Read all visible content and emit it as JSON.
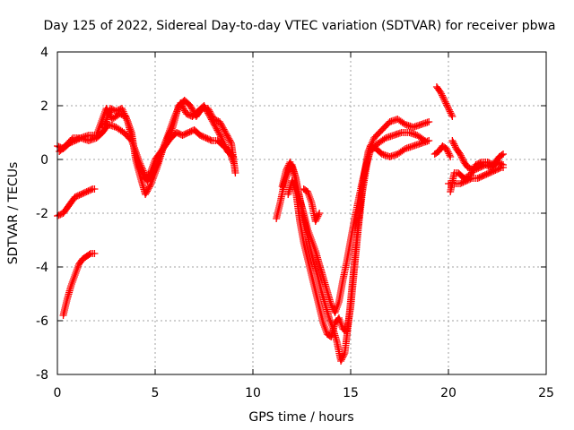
{
  "chart_data": {
    "type": "scatter",
    "title": "Day 125 of 2022, Sidereal Day-to-day VTEC variation (SDTVAR) for receiver pbwa",
    "xlabel": "GPS time / hours",
    "ylabel": "SDTVAR / TECUs",
    "xlim": [
      0,
      25
    ],
    "ylim": [
      -8,
      4
    ],
    "xticks": [
      0,
      5,
      10,
      15,
      20,
      25
    ],
    "yticks": [
      -8,
      -6,
      -4,
      -2,
      0,
      2,
      4
    ],
    "grid": true,
    "marker": "+",
    "color": "#ff0000",
    "series": [
      {
        "points": [
          [
            0.0,
            0.5
          ],
          [
            0.3,
            0.4
          ],
          [
            0.6,
            0.6
          ],
          [
            0.9,
            0.7
          ],
          [
            1.2,
            0.8
          ],
          [
            1.6,
            0.7
          ],
          [
            2.0,
            0.8
          ],
          [
            2.3,
            1.0
          ],
          [
            2.6,
            1.3
          ],
          [
            3.0,
            1.2
          ],
          [
            3.4,
            1.0
          ],
          [
            3.8,
            0.7
          ],
          [
            4.0,
            0.3
          ],
          [
            4.2,
            -0.3
          ],
          [
            4.4,
            -0.6
          ],
          [
            4.6,
            -0.8
          ],
          [
            4.8,
            -0.4
          ],
          [
            5.0,
            0.0
          ],
          [
            5.2,
            0.2
          ],
          [
            5.5,
            0.5
          ],
          [
            5.8,
            0.8
          ],
          [
            6.1,
            1.0
          ],
          [
            6.4,
            0.9
          ],
          [
            6.7,
            1.0
          ],
          [
            7.0,
            1.1
          ],
          [
            7.3,
            0.9
          ],
          [
            7.6,
            0.8
          ],
          [
            7.9,
            0.7
          ],
          [
            8.2,
            0.7
          ],
          [
            8.5,
            0.5
          ],
          [
            8.8,
            0.3
          ],
          [
            9.0,
            -0.1
          ]
        ]
      },
      {
        "points": [
          [
            0.1,
            0.3
          ],
          [
            0.4,
            0.5
          ],
          [
            0.8,
            0.8
          ],
          [
            1.2,
            0.8
          ],
          [
            1.6,
            0.9
          ],
          [
            2.0,
            0.9
          ],
          [
            2.3,
            1.5
          ],
          [
            2.5,
            1.9
          ],
          [
            2.8,
            1.5
          ],
          [
            3.2,
            1.7
          ],
          [
            3.5,
            1.6
          ],
          [
            3.8,
            1.0
          ],
          [
            4.0,
            0.0
          ],
          [
            4.3,
            -0.8
          ],
          [
            4.5,
            -1.3
          ],
          [
            4.8,
            -0.9
          ],
          [
            5.1,
            -0.3
          ],
          [
            5.4,
            0.4
          ],
          [
            5.7,
            1.0
          ],
          [
            6.0,
            1.6
          ],
          [
            6.3,
            2.1
          ],
          [
            6.6,
            1.7
          ],
          [
            6.9,
            1.6
          ],
          [
            7.2,
            1.8
          ],
          [
            7.5,
            2.0
          ],
          [
            7.8,
            1.6
          ],
          [
            8.1,
            1.2
          ],
          [
            8.4,
            0.8
          ],
          [
            8.7,
            0.3
          ],
          [
            9.0,
            0.1
          ]
        ]
      },
      {
        "points": [
          [
            2.4,
            1.2
          ],
          [
            2.7,
            1.9
          ],
          [
            3.0,
            1.8
          ],
          [
            3.3,
            1.9
          ],
          [
            3.6,
            1.4
          ],
          [
            3.9,
            0.5
          ],
          [
            4.2,
            -0.1
          ],
          [
            4.5,
            -0.6
          ],
          [
            4.9,
            -0.5
          ],
          [
            5.2,
            0.0
          ],
          [
            5.5,
            0.6
          ],
          [
            5.9,
            1.2
          ],
          [
            6.2,
            2.0
          ],
          [
            6.5,
            2.2
          ],
          [
            6.8,
            2.0
          ],
          [
            7.1,
            1.6
          ],
          [
            7.4,
            1.9
          ],
          [
            7.7,
            1.9
          ],
          [
            8.0,
            1.5
          ],
          [
            8.3,
            1.4
          ],
          [
            8.6,
            1.0
          ],
          [
            8.9,
            0.6
          ],
          [
            9.1,
            -0.5
          ]
        ]
      },
      {
        "points": [
          [
            0.0,
            -2.1
          ],
          [
            0.3,
            -2.0
          ],
          [
            0.6,
            -1.7
          ],
          [
            0.9,
            -1.4
          ],
          [
            1.2,
            -1.3
          ],
          [
            1.5,
            -1.2
          ],
          [
            1.8,
            -1.1
          ],
          [
            1.9,
            -1.1
          ]
        ]
      },
      {
        "points": [
          [
            0.3,
            -5.8
          ],
          [
            0.5,
            -5.2
          ],
          [
            0.7,
            -4.7
          ],
          [
            0.9,
            -4.3
          ],
          [
            1.1,
            -3.9
          ],
          [
            1.3,
            -3.7
          ],
          [
            1.5,
            -3.6
          ],
          [
            1.7,
            -3.5
          ],
          [
            1.9,
            -3.5
          ]
        ]
      },
      {
        "points": [
          [
            11.2,
            -2.2
          ],
          [
            11.4,
            -1.6
          ],
          [
            11.6,
            -0.9
          ],
          [
            11.8,
            -0.5
          ],
          [
            12.0,
            -0.2
          ],
          [
            12.2,
            -0.7
          ],
          [
            12.4,
            -1.5
          ],
          [
            12.6,
            -2.0
          ],
          [
            12.8,
            -2.6
          ],
          [
            13.0,
            -3.0
          ],
          [
            13.2,
            -3.4
          ],
          [
            13.4,
            -3.9
          ],
          [
            13.6,
            -4.4
          ],
          [
            13.8,
            -4.9
          ],
          [
            14.0,
            -5.4
          ],
          [
            14.2,
            -5.7
          ],
          [
            14.4,
            -5.3
          ],
          [
            14.6,
            -4.5
          ],
          [
            14.8,
            -3.8
          ],
          [
            15.0,
            -3.0
          ],
          [
            15.2,
            -2.2
          ],
          [
            15.4,
            -1.5
          ],
          [
            15.6,
            -0.8
          ],
          [
            15.8,
            -0.2
          ],
          [
            16.0,
            0.3
          ],
          [
            16.4,
            0.6
          ],
          [
            16.8,
            0.8
          ],
          [
            17.2,
            0.9
          ],
          [
            17.6,
            1.0
          ],
          [
            18.0,
            1.0
          ],
          [
            18.4,
            0.9
          ],
          [
            18.8,
            0.7
          ]
        ]
      },
      {
        "points": [
          [
            11.5,
            -1.0
          ],
          [
            11.7,
            -0.4
          ],
          [
            11.9,
            -0.1
          ],
          [
            12.1,
            -0.5
          ],
          [
            12.3,
            -1.1
          ],
          [
            12.5,
            -1.8
          ],
          [
            12.7,
            -2.5
          ],
          [
            12.9,
            -3.2
          ],
          [
            13.1,
            -3.8
          ],
          [
            13.3,
            -4.3
          ],
          [
            13.5,
            -4.9
          ],
          [
            13.7,
            -5.4
          ],
          [
            13.9,
            -5.9
          ],
          [
            14.1,
            -6.3
          ],
          [
            14.3,
            -6.8
          ],
          [
            14.5,
            -7.5
          ],
          [
            14.7,
            -7.2
          ],
          [
            14.9,
            -6.0
          ],
          [
            15.1,
            -4.5
          ],
          [
            15.3,
            -3.0
          ],
          [
            15.5,
            -1.6
          ],
          [
            15.7,
            -0.5
          ],
          [
            15.9,
            0.3
          ],
          [
            16.2,
            0.8
          ],
          [
            16.6,
            1.1
          ],
          [
            17.0,
            1.4
          ],
          [
            17.4,
            1.5
          ],
          [
            17.8,
            1.3
          ],
          [
            18.2,
            1.2
          ],
          [
            18.6,
            1.3
          ],
          [
            19.0,
            1.4
          ]
        ]
      },
      {
        "points": [
          [
            11.8,
            -1.3
          ],
          [
            12.0,
            -0.8
          ],
          [
            12.2,
            -1.2
          ],
          [
            12.4,
            -2.3
          ],
          [
            12.6,
            -3.1
          ],
          [
            12.8,
            -3.7
          ],
          [
            13.0,
            -4.3
          ],
          [
            13.2,
            -4.9
          ],
          [
            13.4,
            -5.5
          ],
          [
            13.6,
            -6.1
          ],
          [
            13.8,
            -6.5
          ],
          [
            14.0,
            -6.6
          ],
          [
            14.2,
            -6.1
          ],
          [
            14.4,
            -5.9
          ],
          [
            14.6,
            -6.3
          ],
          [
            14.8,
            -6.4
          ],
          [
            15.0,
            -5.5
          ],
          [
            15.2,
            -4.0
          ],
          [
            15.4,
            -2.5
          ],
          [
            15.6,
            -1.2
          ],
          [
            15.8,
            -0.3
          ],
          [
            16.0,
            0.5
          ],
          [
            16.3,
            0.4
          ],
          [
            16.6,
            0.2
          ],
          [
            17.0,
            0.1
          ],
          [
            17.4,
            0.2
          ],
          [
            17.8,
            0.4
          ],
          [
            18.2,
            0.5
          ],
          [
            18.6,
            0.6
          ],
          [
            19.0,
            0.7
          ]
        ]
      },
      {
        "points": [
          [
            12.6,
            -1.1
          ],
          [
            12.8,
            -1.2
          ],
          [
            13.0,
            -1.6
          ],
          [
            13.2,
            -2.3
          ],
          [
            13.4,
            -2.0
          ]
        ]
      },
      {
        "points": [
          [
            19.4,
            2.7
          ],
          [
            19.6,
            2.5
          ],
          [
            19.8,
            2.2
          ],
          [
            20.0,
            1.9
          ],
          [
            20.2,
            1.6
          ]
        ]
      },
      {
        "points": [
          [
            19.3,
            0.2
          ],
          [
            19.5,
            0.3
          ],
          [
            19.7,
            0.5
          ],
          [
            19.9,
            0.4
          ],
          [
            20.1,
            0.1
          ]
        ]
      },
      {
        "points": [
          [
            20.0,
            -0.9
          ],
          [
            20.3,
            -0.9
          ],
          [
            20.6,
            -0.9
          ],
          [
            20.9,
            -0.8
          ],
          [
            21.2,
            -0.7
          ],
          [
            21.5,
            -0.7
          ],
          [
            21.8,
            -0.6
          ],
          [
            22.1,
            -0.5
          ],
          [
            22.4,
            -0.4
          ],
          [
            22.7,
            -0.3
          ],
          [
            22.8,
            -0.3
          ]
        ]
      },
      {
        "points": [
          [
            20.2,
            0.7
          ],
          [
            20.4,
            0.4
          ],
          [
            20.6,
            0.2
          ],
          [
            20.8,
            -0.1
          ],
          [
            21.0,
            -0.3
          ],
          [
            21.3,
            -0.4
          ],
          [
            21.6,
            -0.3
          ],
          [
            21.9,
            -0.2
          ],
          [
            22.2,
            -0.3
          ],
          [
            22.5,
            -0.1
          ],
          [
            22.8,
            -0.2
          ]
        ]
      },
      {
        "points": [
          [
            20.1,
            -1.2
          ],
          [
            20.3,
            -0.5
          ],
          [
            20.5,
            -0.5
          ],
          [
            20.8,
            -0.7
          ],
          [
            21.1,
            -0.6
          ],
          [
            21.4,
            -0.2
          ],
          [
            21.7,
            -0.1
          ],
          [
            22.0,
            -0.1
          ],
          [
            22.3,
            -0.2
          ],
          [
            22.6,
            0.1
          ],
          [
            22.8,
            0.2
          ]
        ]
      }
    ]
  }
}
